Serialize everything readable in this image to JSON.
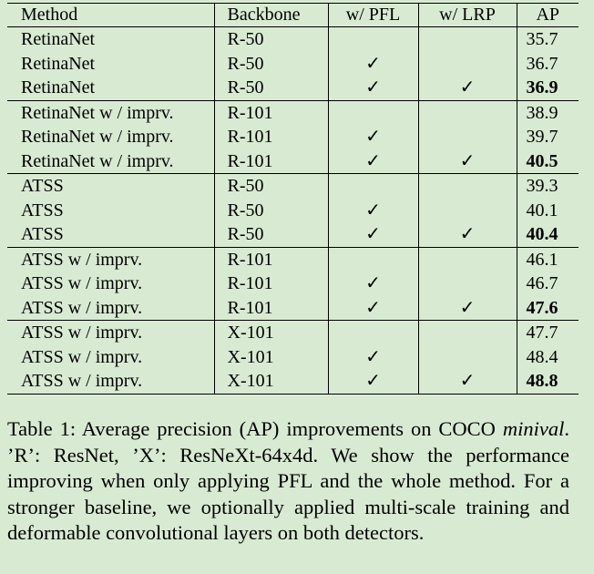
{
  "table": {
    "headers": [
      "Method",
      "Backbone",
      "w/ PFL",
      "w/ LRP",
      "AP"
    ],
    "check_glyph": "✓",
    "groups": [
      {
        "rows": [
          {
            "method": "RetinaNet",
            "backbone": "R-50",
            "pfl": false,
            "lrp": false,
            "ap": "35.7",
            "best": false
          },
          {
            "method": "RetinaNet",
            "backbone": "R-50",
            "pfl": true,
            "lrp": false,
            "ap": "36.7",
            "best": false
          },
          {
            "method": "RetinaNet",
            "backbone": "R-50",
            "pfl": true,
            "lrp": true,
            "ap": "36.9",
            "best": true
          }
        ]
      },
      {
        "rows": [
          {
            "method": "RetinaNet w / imprv.",
            "backbone": "R-101",
            "pfl": false,
            "lrp": false,
            "ap": "38.9",
            "best": false
          },
          {
            "method": "RetinaNet w / imprv.",
            "backbone": "R-101",
            "pfl": true,
            "lrp": false,
            "ap": "39.7",
            "best": false
          },
          {
            "method": "RetinaNet w / imprv.",
            "backbone": "R-101",
            "pfl": true,
            "lrp": true,
            "ap": "40.5",
            "best": true
          }
        ]
      },
      {
        "rows": [
          {
            "method": "ATSS",
            "backbone": "R-50",
            "pfl": false,
            "lrp": false,
            "ap": "39.3",
            "best": false
          },
          {
            "method": "ATSS",
            "backbone": "R-50",
            "pfl": true,
            "lrp": false,
            "ap": "40.1",
            "best": false
          },
          {
            "method": "ATSS",
            "backbone": "R-50",
            "pfl": true,
            "lrp": true,
            "ap": "40.4",
            "best": true
          }
        ]
      },
      {
        "rows": [
          {
            "method": "ATSS w / imprv.",
            "backbone": "R-101",
            "pfl": false,
            "lrp": false,
            "ap": "46.1",
            "best": false
          },
          {
            "method": "ATSS w / imprv.",
            "backbone": "R-101",
            "pfl": true,
            "lrp": false,
            "ap": "46.7",
            "best": false
          },
          {
            "method": "ATSS w / imprv.",
            "backbone": "R-101",
            "pfl": true,
            "lrp": true,
            "ap": "47.6",
            "best": true
          }
        ]
      },
      {
        "rows": [
          {
            "method": "ATSS w / imprv.",
            "backbone": "X-101",
            "pfl": false,
            "lrp": false,
            "ap": "47.7",
            "best": false
          },
          {
            "method": "ATSS w / imprv.",
            "backbone": "X-101",
            "pfl": true,
            "lrp": false,
            "ap": "48.4",
            "best": false
          },
          {
            "method": "ATSS w / imprv.",
            "backbone": "X-101",
            "pfl": true,
            "lrp": true,
            "ap": "48.8",
            "best": true
          }
        ]
      }
    ]
  },
  "caption": {
    "part1": "Table 1: Average precision (AP) improvements on COCO ",
    "italic": "minival",
    "part2": ". ’R’: ResNet, ’X’: ResNeXt-64x4d. We show the performance improving when only applying PFL and the whole method. For a stronger baseline, we optionally ap­plied multi-scale training and deformable convolutional lay­ers on both detectors."
  },
  "colors": {
    "background": "#d9ead3",
    "text": "#000000"
  }
}
